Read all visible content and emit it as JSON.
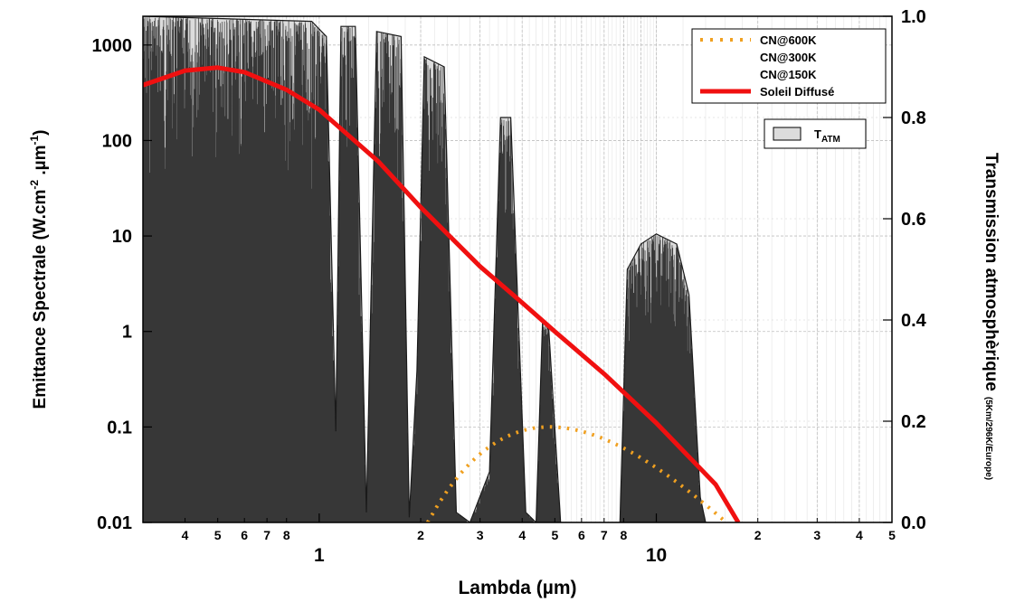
{
  "chart_data": {
    "type": "line",
    "xlabel": "Lambda (µm)",
    "ylabel_left": "Emittance Spectrale (W.cm",
    "ylabel_left_sup1": "-2",
    "ylabel_left_mid": " .µm",
    "ylabel_left_sup2": "-1",
    "ylabel_left_end": ")",
    "ylabel_right": "Transmission atmosphèrique",
    "ylabel_right_note": "(5Km/296K/Europe)",
    "x_scale": "log",
    "xlim": [
      0.3,
      50
    ],
    "y_left_scale": "log",
    "y_left_lim": [
      0.01,
      2000
    ],
    "y_right_lim": [
      0.0,
      1.0
    ],
    "x_major_ticks": [
      {
        "value": 1,
        "label": "1"
      },
      {
        "value": 10,
        "label": "10"
      }
    ],
    "x_minor_ticks": [
      {
        "value": 0.4,
        "label": "4"
      },
      {
        "value": 0.5,
        "label": "5"
      },
      {
        "value": 0.6,
        "label": "6"
      },
      {
        "value": 0.7,
        "label": "7"
      },
      {
        "value": 0.8,
        "label": "8"
      },
      {
        "value": 2,
        "label": "2"
      },
      {
        "value": 3,
        "label": "3"
      },
      {
        "value": 4,
        "label": "4"
      },
      {
        "value": 5,
        "label": "5"
      },
      {
        "value": 6,
        "label": "6"
      },
      {
        "value": 7,
        "label": "7"
      },
      {
        "value": 8,
        "label": "8"
      },
      {
        "value": 20,
        "label": "2"
      },
      {
        "value": 30,
        "label": "3"
      },
      {
        "value": 40,
        "label": "4"
      },
      {
        "value": 50,
        "label": "5"
      }
    ],
    "y_left_ticks": [
      {
        "value": 0.01,
        "label": "0.01"
      },
      {
        "value": 0.1,
        "label": "0.1"
      },
      {
        "value": 1,
        "label": "1"
      },
      {
        "value": 10,
        "label": "10"
      },
      {
        "value": 100,
        "label": "100"
      },
      {
        "value": 1000,
        "label": "1000"
      }
    ],
    "y_right_ticks": [
      {
        "value": 0.0,
        "label": "0.0"
      },
      {
        "value": 0.2,
        "label": "0.2"
      },
      {
        "value": 0.4,
        "label": "0.4"
      },
      {
        "value": 0.6,
        "label": "0.6"
      },
      {
        "value": 0.8,
        "label": "0.8"
      },
      {
        "value": 1.0,
        "label": "1.0"
      }
    ],
    "grid": true,
    "legend_position": "top-right",
    "series": [
      {
        "name": "CN@600K",
        "kind": "blackbody",
        "temperature": 600,
        "axis": "left",
        "style": "dotted",
        "color": "#f0a020"
      },
      {
        "name": "CN@300K",
        "kind": "blackbody",
        "temperature": 300,
        "axis": "left",
        "style": "solid",
        "color": "#10c010"
      },
      {
        "name": "CN@150K",
        "kind": "blackbody",
        "temperature": 150,
        "axis": "left",
        "style": "dotted",
        "color": "#1030e0"
      },
      {
        "name": "Soleil Diffusé",
        "axis": "left",
        "style": "solid",
        "color": "#f01010",
        "x": [
          0.3,
          0.4,
          0.5,
          0.6,
          0.8,
          1.0,
          1.5,
          2.0,
          3.0,
          4.0,
          5.0,
          7.0,
          10.0,
          15.0,
          17.5
        ],
        "y": [
          380,
          540,
          580,
          520,
          340,
          210,
          60,
          20,
          4.8,
          2.0,
          1.0,
          0.36,
          0.11,
          0.025,
          0.01
        ]
      }
    ],
    "transmission": {
      "name": "T",
      "name_sub": "ATM",
      "axis": "right",
      "color": "#1a1a1a",
      "fill": "#dcdcdc",
      "envelope": [
        {
          "x": 0.3,
          "y": 1.0
        },
        {
          "x": 0.95,
          "y": 0.99
        },
        {
          "x": 1.05,
          "y": 0.96
        },
        {
          "x": 1.12,
          "y": 0.18
        },
        {
          "x": 1.16,
          "y": 0.98
        },
        {
          "x": 1.28,
          "y": 0.98
        },
        {
          "x": 1.38,
          "y": 0.02
        },
        {
          "x": 1.48,
          "y": 0.97
        },
        {
          "x": 1.75,
          "y": 0.96
        },
        {
          "x": 1.85,
          "y": 0.01
        },
        {
          "x": 1.95,
          "y": 0.3
        },
        {
          "x": 2.05,
          "y": 0.92
        },
        {
          "x": 2.35,
          "y": 0.9
        },
        {
          "x": 2.55,
          "y": 0.02
        },
        {
          "x": 2.8,
          "y": 0.0
        },
        {
          "x": 3.2,
          "y": 0.1
        },
        {
          "x": 3.45,
          "y": 0.8
        },
        {
          "x": 3.7,
          "y": 0.8
        },
        {
          "x": 4.1,
          "y": 0.02
        },
        {
          "x": 4.4,
          "y": 0.0
        },
        {
          "x": 4.6,
          "y": 0.4
        },
        {
          "x": 4.8,
          "y": 0.38
        },
        {
          "x": 5.2,
          "y": 0.0
        },
        {
          "x": 7.8,
          "y": 0.0
        },
        {
          "x": 8.2,
          "y": 0.5
        },
        {
          "x": 9.0,
          "y": 0.55
        },
        {
          "x": 10.0,
          "y": 0.57
        },
        {
          "x": 11.5,
          "y": 0.55
        },
        {
          "x": 12.5,
          "y": 0.45
        },
        {
          "x": 13.5,
          "y": 0.05
        },
        {
          "x": 14.0,
          "y": 0.0
        },
        {
          "x": 50,
          "y": 0.0
        }
      ]
    }
  }
}
